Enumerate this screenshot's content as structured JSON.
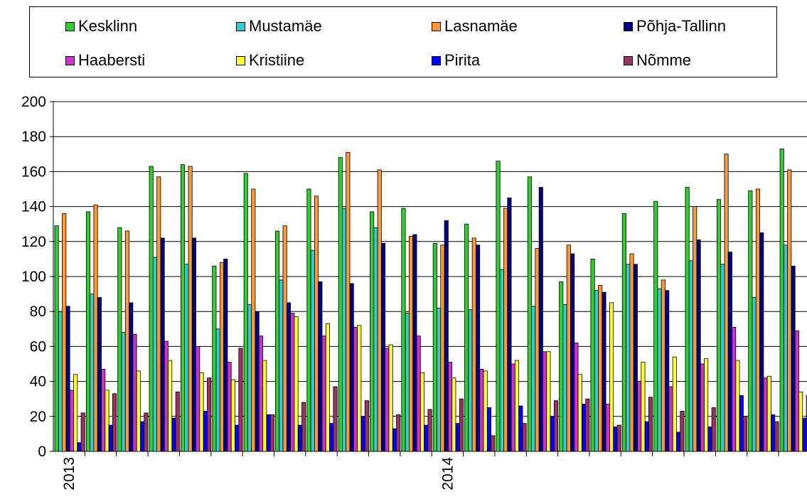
{
  "chart_data": {
    "type": "bar",
    "title": "",
    "xlabel": "",
    "ylabel": "",
    "ylim": [
      0,
      200
    ],
    "yticks": [
      "0",
      "20",
      "40",
      "60",
      "80",
      "100",
      "120",
      "140",
      "160",
      "180",
      "200"
    ],
    "grid": true,
    "legend_position": "top",
    "year_labels": [
      {
        "label": "2013",
        "group": 0
      },
      {
        "label": "2014",
        "group": 12
      }
    ],
    "series": [
      {
        "name": "Kesklinn",
        "color": "#33cc33",
        "values": [
          129,
          137,
          128,
          163,
          164,
          106,
          159,
          126,
          150,
          168,
          137,
          139,
          119,
          130,
          166,
          157,
          97,
          110,
          136,
          143,
          151,
          144,
          149,
          173
        ]
      },
      {
        "name": "Mustamäe",
        "color": "#33cccc",
        "values": [
          80,
          90,
          68,
          111,
          107,
          70,
          84,
          98,
          115,
          139,
          128,
          79,
          82,
          81,
          104,
          83,
          84,
          92,
          107,
          93,
          109,
          107,
          88,
          118
        ]
      },
      {
        "name": "Lasnamäe",
        "color": "#ff9933",
        "values": [
          136,
          141,
          126,
          157,
          163,
          108,
          150,
          129,
          146,
          171,
          161,
          123,
          118,
          122,
          139,
          116,
          118,
          95,
          113,
          98,
          140,
          170,
          150,
          161
        ]
      },
      {
        "name": "Põhja-Tallinn",
        "color": "#000080",
        "values": [
          83,
          88,
          85,
          122,
          122,
          110,
          80,
          85,
          97,
          96,
          119,
          124,
          132,
          118,
          145,
          151,
          113,
          91,
          107,
          92,
          121,
          114,
          125,
          106
        ]
      },
      {
        "name": "Haabersti",
        "color": "#cc33cc",
        "values": [
          35,
          47,
          67,
          63,
          60,
          51,
          66,
          79,
          66,
          71,
          59,
          66,
          51,
          47,
          50,
          57,
          62,
          27,
          40,
          37,
          50,
          71,
          42,
          69
        ]
      },
      {
        "name": "Kristiine",
        "color": "#ffff33",
        "values": [
          44,
          35,
          46,
          52,
          45,
          41,
          52,
          77,
          73,
          72,
          61,
          45,
          42,
          46,
          52,
          57,
          44,
          85,
          51,
          54,
          53,
          52,
          43,
          34
        ]
      },
      {
        "name": "Pirita",
        "color": "#0000ff",
        "values": [
          5,
          15,
          17,
          19,
          23,
          15,
          21,
          15,
          16,
          20,
          13,
          15,
          16,
          25,
          26,
          20,
          27,
          14,
          17,
          11,
          14,
          32,
          21,
          19
        ]
      },
      {
        "name": "Nõmme",
        "color": "#993366",
        "values": [
          22,
          33,
          22,
          34,
          42,
          59,
          21,
          28,
          37,
          29,
          21,
          24,
          30,
          9,
          16,
          29,
          30,
          15,
          31,
          23,
          25,
          20,
          17,
          32
        ]
      }
    ]
  }
}
